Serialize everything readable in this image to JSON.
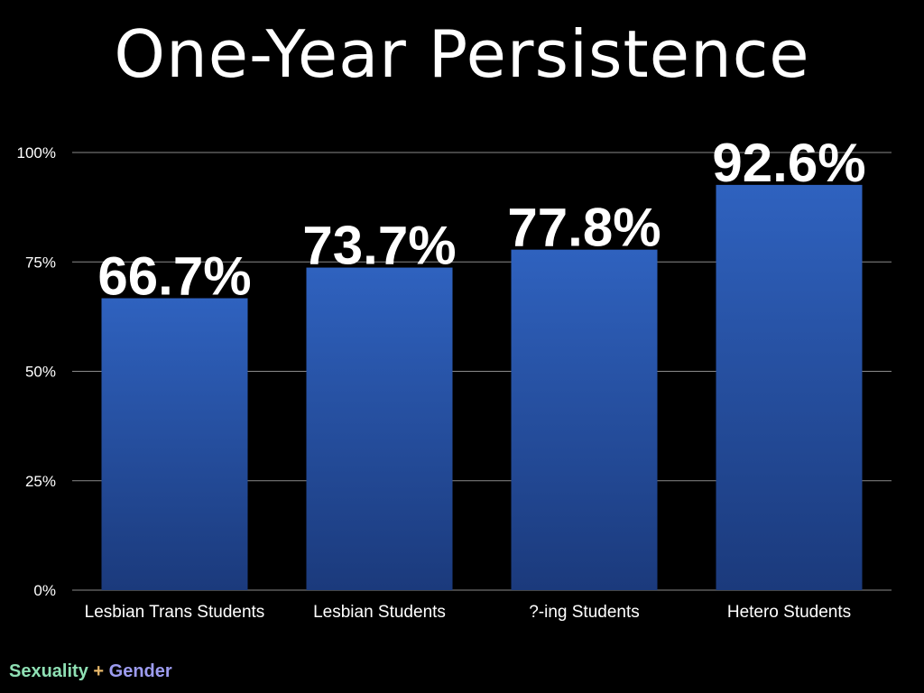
{
  "title": "One-Year Persistence",
  "footer": {
    "part1": "Sexuality",
    "plus": "+",
    "part2": "Gender"
  },
  "colors": {
    "bar_top": "#2f62bf",
    "bar_bottom": "#1b3a7c",
    "grid": "#8a8a8a",
    "text": "#ffffff",
    "background": "#000000"
  },
  "chart_data": {
    "type": "bar",
    "categories": [
      "Lesbian Trans Students",
      "Lesbian Students",
      "?-ing Students",
      "Hetero Students"
    ],
    "values": [
      66.7,
      73.7,
      77.8,
      92.6
    ],
    "data_labels": [
      "66.7%",
      "73.7%",
      "77.8%",
      "92.6%"
    ],
    "yticks": [
      0,
      25,
      50,
      75,
      100
    ],
    "ytick_labels": [
      "0%",
      "25%",
      "50%",
      "75%",
      "100%"
    ],
    "ylim": [
      0,
      100
    ],
    "grid": true,
    "legend": "none"
  }
}
